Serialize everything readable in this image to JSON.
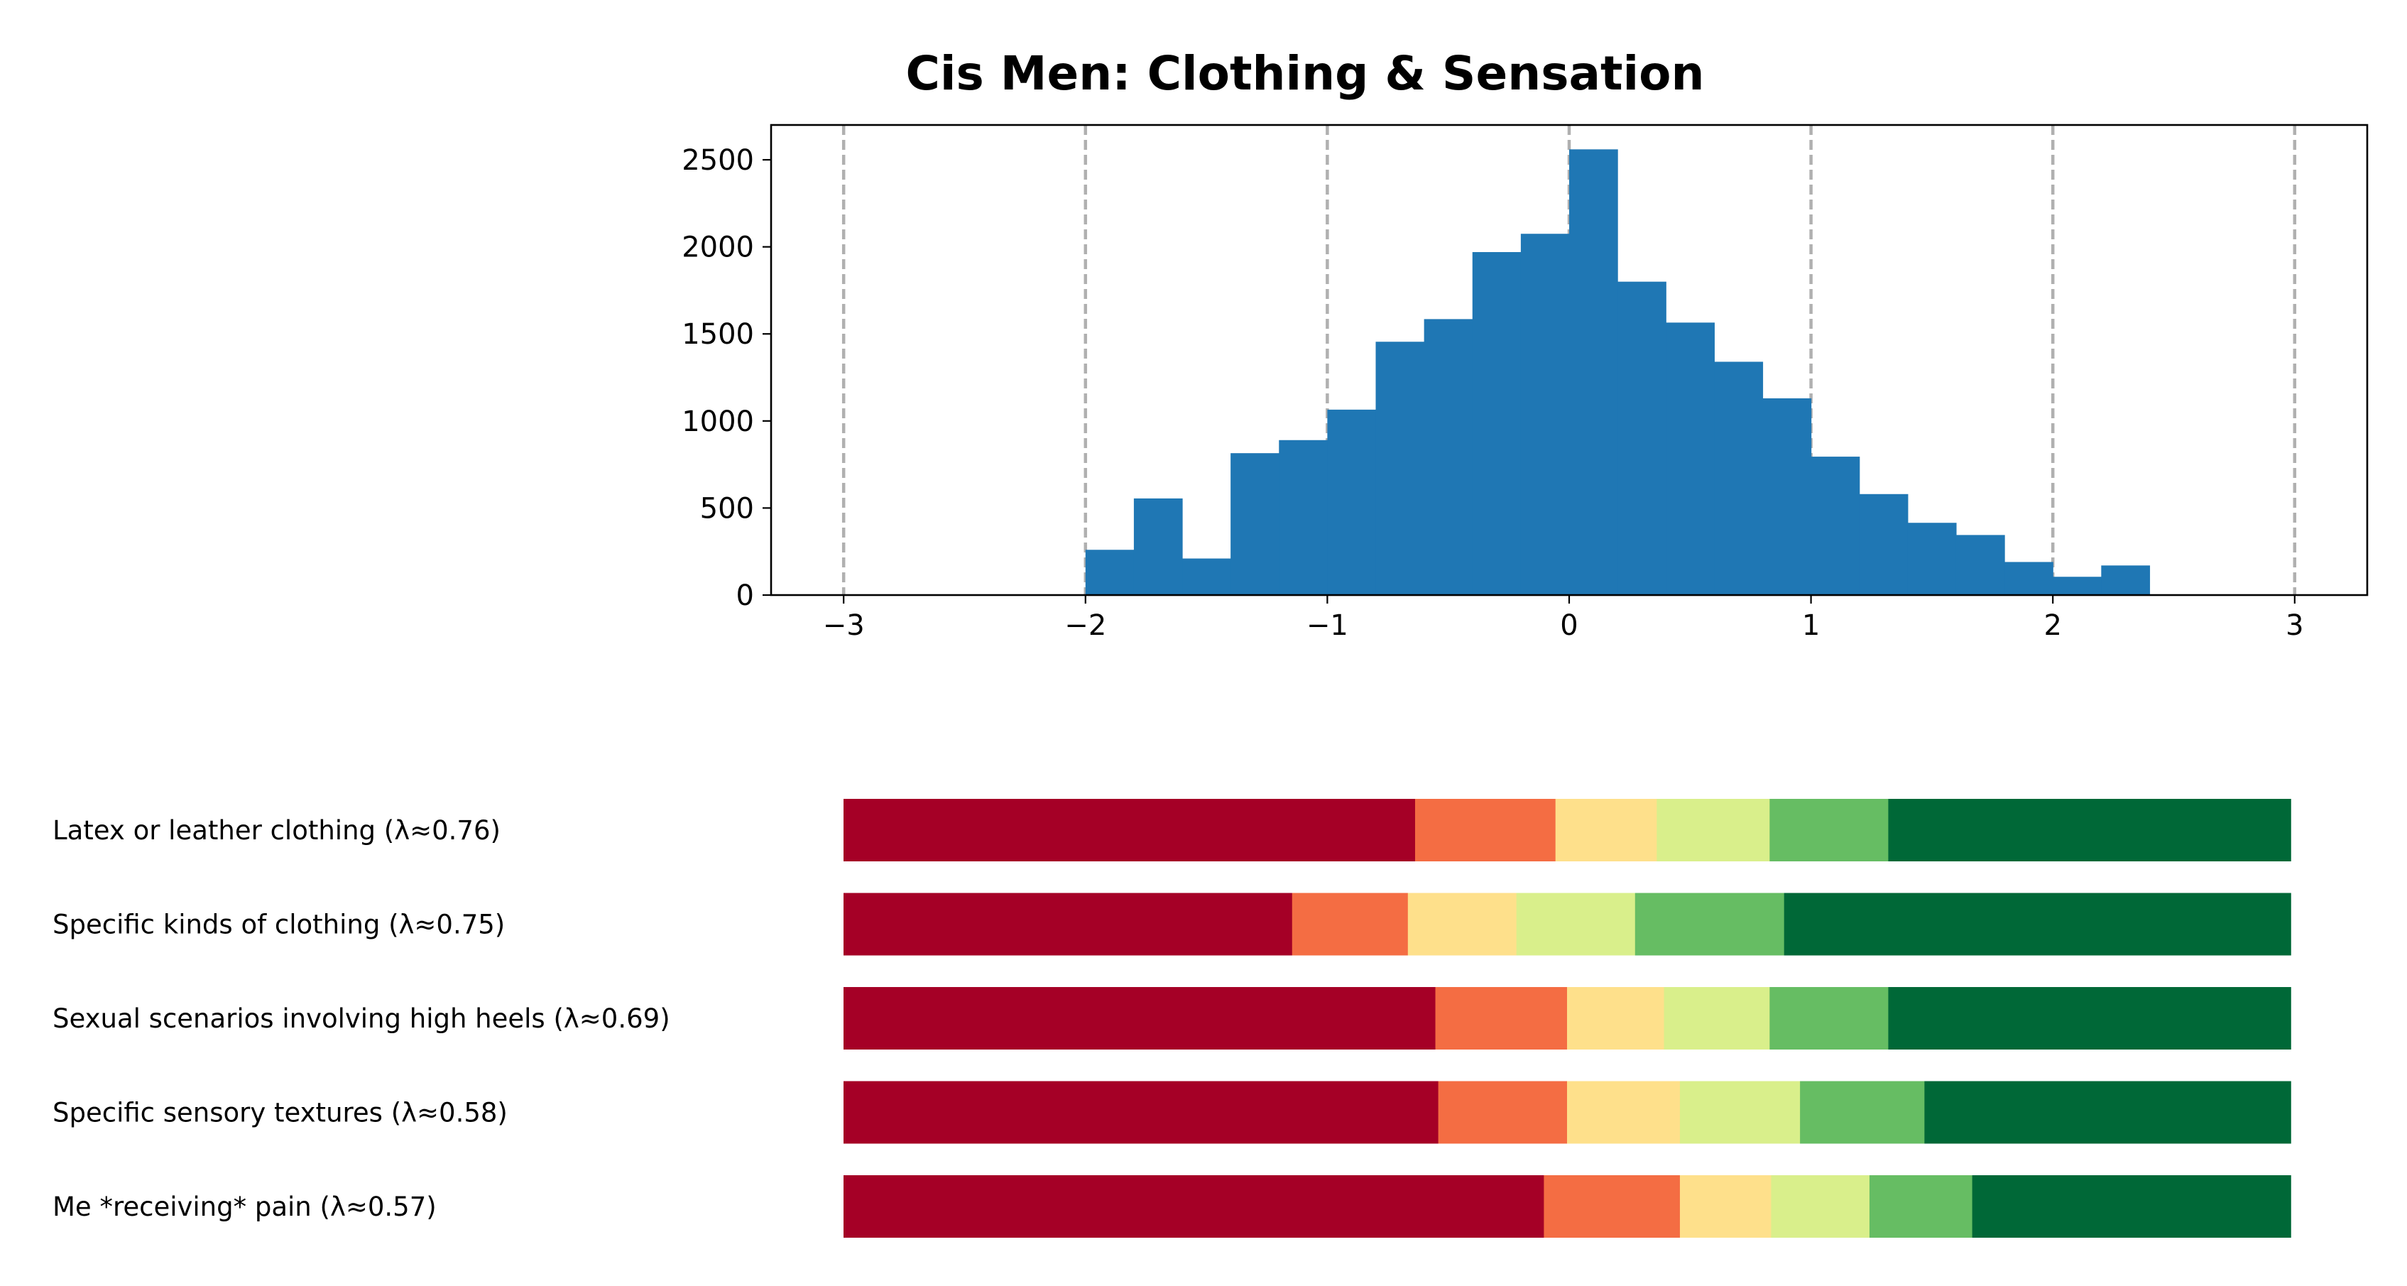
{
  "chart_data": [
    {
      "type": "bar",
      "title": "Cis Men: Clothing & Sensation",
      "xlim": [
        -3.3,
        3.3
      ],
      "ylim": [
        0,
        2700
      ],
      "xticks": [
        -3,
        -2,
        -1,
        0,
        1,
        2,
        3
      ],
      "xtick_labels": [
        "−3",
        "−2",
        "−1",
        "0",
        "1",
        "2",
        "3"
      ],
      "yticks": [
        0,
        500,
        1000,
        1500,
        2000,
        2500
      ],
      "ytick_labels": [
        "0",
        "500",
        "1000",
        "1500",
        "2000",
        "2500"
      ],
      "grid": "vertical dashed at x ticks",
      "bin_edges": [
        -2.0,
        -1.8,
        -1.6,
        -1.4,
        -1.2,
        -1.0,
        -0.8,
        -0.6,
        -0.4,
        -0.2,
        0.0,
        0.2,
        0.4,
        0.6,
        0.8,
        1.0,
        1.2,
        1.4,
        1.6,
        1.8,
        2.0,
        2.2,
        2.4
      ],
      "counts": [
        260,
        555,
        210,
        815,
        890,
        1065,
        1455,
        1585,
        1970,
        2075,
        2560,
        1800,
        1565,
        1340,
        1130,
        795,
        580,
        415,
        345,
        190,
        105,
        170
      ],
      "color": "#1f77b4"
    },
    {
      "type": "bar",
      "orientation": "horizontal-stacked",
      "categories": [
        "Latex or leather clothing (λ≈0.76)",
        "Specific kinds of clothing (λ≈0.75)",
        "Sexual scenarios involving high heels (λ≈0.69)",
        "Specific sensory textures (λ≈0.58)",
        "Me *receiving* pain (λ≈0.57)"
      ],
      "segment_colors": [
        "#a50026",
        "#f46d43",
        "#fee08b",
        "#d9ef8b",
        "#66bd63",
        "#006837"
      ],
      "proportions": [
        [
          0.395,
          0.097,
          0.07,
          0.078,
          0.082,
          0.278
        ],
        [
          0.31,
          0.08,
          0.075,
          0.082,
          0.103,
          0.35
        ],
        [
          0.409,
          0.091,
          0.067,
          0.073,
          0.082,
          0.278
        ],
        [
          0.411,
          0.089,
          0.078,
          0.083,
          0.086,
          0.253
        ],
        [
          0.484,
          0.094,
          0.063,
          0.068,
          0.071,
          0.22
        ]
      ]
    }
  ]
}
